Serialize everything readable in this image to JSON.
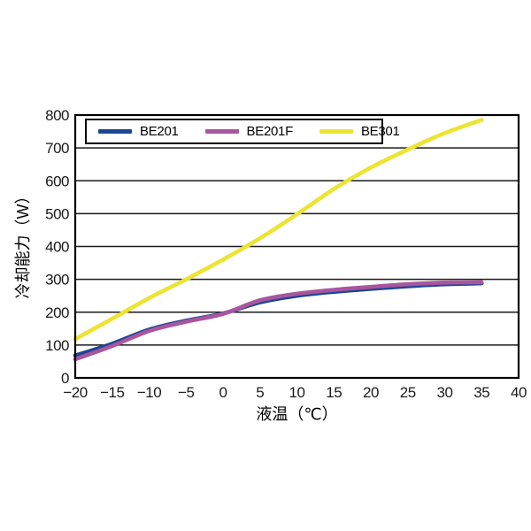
{
  "chart_data": {
    "type": "line",
    "title": "",
    "xlabel": "液温（℃）",
    "ylabel": "冷却能力（W）",
    "xlim": [
      -20,
      40
    ],
    "ylim": [
      0,
      800
    ],
    "grid": "horizontal-only",
    "legend_position": "top-inside-framed",
    "x_tick_labels": [
      "−20",
      "−15",
      "−10",
      "−5",
      "0",
      "5",
      "10",
      "15",
      "20",
      "25",
      "30",
      "35",
      "40"
    ],
    "x_tick_values": [
      -20,
      -15,
      -10,
      -5,
      0,
      5,
      10,
      15,
      20,
      25,
      30,
      35,
      40
    ],
    "y_tick_values": [
      0,
      100,
      200,
      300,
      400,
      500,
      600,
      700,
      800
    ],
    "x": [
      -20,
      -15,
      -10,
      -5,
      0,
      5,
      10,
      15,
      20,
      25,
      30,
      35
    ],
    "series": [
      {
        "name": "BE201",
        "color": "#1d4693",
        "values": [
          68,
          104,
          147,
          174,
          196,
          230,
          250,
          262,
          271,
          279,
          285,
          288
        ]
      },
      {
        "name": "BE201F",
        "color": "#a9559f",
        "values": [
          57,
          97,
          143,
          171,
          195,
          236,
          256,
          268,
          277,
          285,
          290,
          291
        ]
      },
      {
        "name": "BE301",
        "color": "#ece431",
        "values": [
          118,
          180,
          243,
          300,
          360,
          425,
          498,
          575,
          640,
          695,
          745,
          785
        ]
      }
    ],
    "frame_color": "#000000",
    "grid_color": "#1a1a1a"
  }
}
